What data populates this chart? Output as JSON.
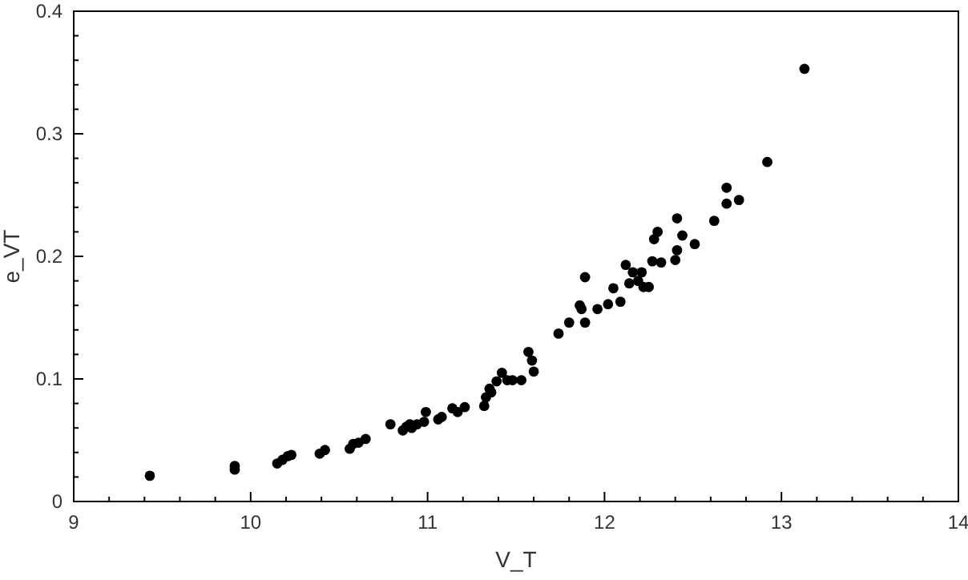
{
  "chart_data": {
    "type": "scatter",
    "xlabel": "V_T",
    "ylabel": "e_VT",
    "xlim": [
      9,
      14
    ],
    "ylim": [
      0,
      0.4
    ],
    "xticks": [
      9,
      {
        "value": 9.2,
        "label": null
      },
      {
        "value": 9.4,
        "label": null
      },
      {
        "value": 9.6,
        "label": null
      },
      {
        "value": 9.8,
        "label": null
      },
      10,
      {
        "value": 10.2,
        "label": null
      },
      {
        "value": 10.4,
        "label": null
      },
      {
        "value": 10.6,
        "label": null
      },
      {
        "value": 10.8,
        "label": null
      },
      11,
      {
        "value": 11.2,
        "label": null
      },
      {
        "value": 11.4,
        "label": null
      },
      {
        "value": 11.6,
        "label": null
      },
      {
        "value": 11.8,
        "label": null
      },
      12,
      {
        "value": 12.2,
        "label": null
      },
      {
        "value": 12.4,
        "label": null
      },
      {
        "value": 12.6,
        "label": null
      },
      {
        "value": 12.8,
        "label": null
      },
      13,
      {
        "value": 13.2,
        "label": null
      },
      {
        "value": 13.4,
        "label": null
      },
      {
        "value": 13.6,
        "label": null
      },
      {
        "value": 13.8,
        "label": null
      },
      14
    ],
    "yticks": [
      0,
      {
        "value": 0.02,
        "label": null
      },
      {
        "value": 0.04,
        "label": null
      },
      {
        "value": 0.06,
        "label": null
      },
      {
        "value": 0.08,
        "label": null
      },
      0.1,
      {
        "value": 0.12,
        "label": null
      },
      {
        "value": 0.14,
        "label": null
      },
      {
        "value": 0.16,
        "label": null
      },
      {
        "value": 0.18,
        "label": null
      },
      0.2,
      {
        "value": 0.22,
        "label": null
      },
      {
        "value": 0.24,
        "label": null
      },
      {
        "value": 0.26,
        "label": null
      },
      {
        "value": 0.28,
        "label": null
      },
      0.3,
      {
        "value": 0.32,
        "label": null
      },
      {
        "value": 0.34,
        "label": null
      },
      {
        "value": 0.36,
        "label": null
      },
      {
        "value": 0.38,
        "label": null
      },
      0.4
    ],
    "marker": "circle",
    "grid": false,
    "series": [
      {
        "color": "#000000",
        "x": [
          9.43,
          9.91,
          9.91,
          10.15,
          10.18,
          10.21,
          10.23,
          10.39,
          10.42,
          10.56,
          10.58,
          10.61,
          10.65,
          10.79,
          10.86,
          10.88,
          10.9,
          10.91,
          10.94,
          10.98,
          10.99,
          11.06,
          11.08,
          11.14,
          11.17,
          11.21,
          11.32,
          11.33,
          11.35,
          11.36,
          11.39,
          11.42,
          11.45,
          11.48,
          11.53,
          11.57,
          11.59,
          11.6,
          11.74,
          11.8,
          11.86,
          11.87,
          11.89,
          11.89,
          11.96,
          12.02,
          12.05,
          12.09,
          12.12,
          12.14,
          12.16,
          12.19,
          12.21,
          12.22,
          12.25,
          12.28,
          12.3,
          12.27,
          12.32,
          12.4,
          12.41,
          12.41,
          12.44,
          12.51,
          12.62,
          12.69,
          12.69,
          12.76,
          12.92,
          13.13
        ],
        "values": [
          0.021,
          0.029,
          0.026,
          0.031,
          0.034,
          0.037,
          0.038,
          0.039,
          0.042,
          0.043,
          0.047,
          0.048,
          0.051,
          0.063,
          0.058,
          0.061,
          0.063,
          0.06,
          0.063,
          0.065,
          0.073,
          0.067,
          0.069,
          0.076,
          0.073,
          0.077,
          0.078,
          0.085,
          0.092,
          0.089,
          0.098,
          0.105,
          0.099,
          0.099,
          0.099,
          0.122,
          0.115,
          0.106,
          0.137,
          0.146,
          0.16,
          0.157,
          0.183,
          0.146,
          0.157,
          0.161,
          0.174,
          0.163,
          0.193,
          0.178,
          0.187,
          0.18,
          0.187,
          0.175,
          0.175,
          0.214,
          0.22,
          0.196,
          0.195,
          0.197,
          0.205,
          0.231,
          0.217,
          0.21,
          0.229,
          0.243,
          0.256,
          0.246,
          0.277,
          0.353
        ]
      }
    ]
  }
}
